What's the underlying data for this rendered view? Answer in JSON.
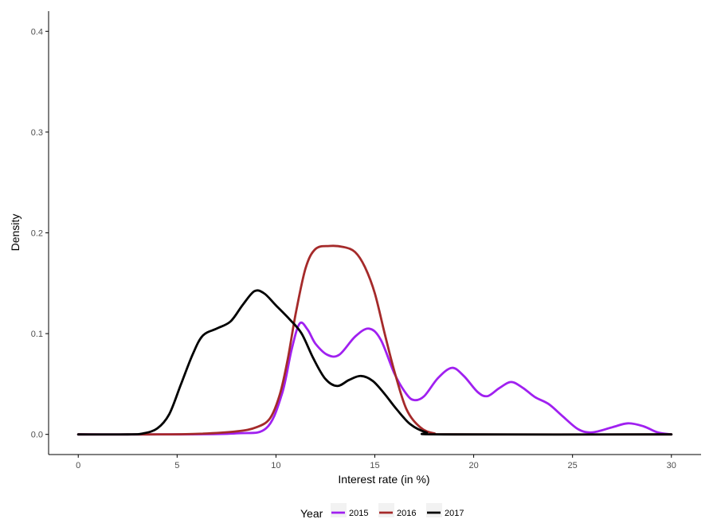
{
  "chart_data": {
    "type": "line",
    "title": "",
    "xlabel": "Interest rate (in %)",
    "ylabel": "Density",
    "xlim": [
      0,
      30
    ],
    "ylim": [
      0,
      0.4
    ],
    "x_ticks": [
      "0",
      "5",
      "10",
      "15",
      "20",
      "25",
      "30"
    ],
    "y_ticks": [
      "0.0",
      "0.1",
      "0.2",
      "0.3",
      "0.4"
    ],
    "grid": false,
    "legend": {
      "title": "Year",
      "position": "bottom"
    },
    "series": [
      {
        "name": "2015",
        "color": "#A020F0",
        "points": [
          [
            0,
            0
          ],
          [
            5,
            0
          ],
          [
            8,
            0.001
          ],
          [
            9.5,
            0.006
          ],
          [
            10.3,
            0.04
          ],
          [
            10.8,
            0.085
          ],
          [
            11.2,
            0.11
          ],
          [
            11.6,
            0.104
          ],
          [
            12,
            0.09
          ],
          [
            12.6,
            0.079
          ],
          [
            13.2,
            0.079
          ],
          [
            14,
            0.097
          ],
          [
            14.7,
            0.105
          ],
          [
            15.3,
            0.094
          ],
          [
            16,
            0.06
          ],
          [
            16.6,
            0.04
          ],
          [
            17,
            0.034
          ],
          [
            17.5,
            0.038
          ],
          [
            18.2,
            0.056
          ],
          [
            18.9,
            0.066
          ],
          [
            19.5,
            0.058
          ],
          [
            20.2,
            0.042
          ],
          [
            20.7,
            0.038
          ],
          [
            21.3,
            0.046
          ],
          [
            21.9,
            0.052
          ],
          [
            22.5,
            0.046
          ],
          [
            23.1,
            0.037
          ],
          [
            23.8,
            0.03
          ],
          [
            24.5,
            0.018
          ],
          [
            25.3,
            0.005
          ],
          [
            26,
            0.002
          ],
          [
            27,
            0.007
          ],
          [
            27.8,
            0.011
          ],
          [
            28.6,
            0.008
          ],
          [
            29.3,
            0.002
          ],
          [
            30,
            0
          ]
        ]
      },
      {
        "name": "2016",
        "color": "#A52A2A",
        "points": [
          [
            0,
            0
          ],
          [
            3.5,
            0
          ],
          [
            6,
            0.0005
          ],
          [
            8,
            0.003
          ],
          [
            9,
            0.007
          ],
          [
            9.7,
            0.016
          ],
          [
            10.2,
            0.04
          ],
          [
            10.6,
            0.075
          ],
          [
            11,
            0.12
          ],
          [
            11.5,
            0.165
          ],
          [
            12,
            0.184
          ],
          [
            12.7,
            0.187
          ],
          [
            13.4,
            0.186
          ],
          [
            14,
            0.181
          ],
          [
            14.5,
            0.166
          ],
          [
            15,
            0.14
          ],
          [
            15.5,
            0.1
          ],
          [
            16,
            0.062
          ],
          [
            16.6,
            0.025
          ],
          [
            17.3,
            0.007
          ],
          [
            18,
            0.001
          ],
          [
            19,
            0
          ],
          [
            30,
            0
          ]
        ]
      },
      {
        "name": "2017",
        "color": "#000000",
        "points": [
          [
            0,
            0
          ],
          [
            2.5,
            0
          ],
          [
            3.3,
            0.001
          ],
          [
            4,
            0.006
          ],
          [
            4.6,
            0.02
          ],
          [
            5.2,
            0.05
          ],
          [
            5.8,
            0.08
          ],
          [
            6.3,
            0.098
          ],
          [
            7,
            0.105
          ],
          [
            7.7,
            0.112
          ],
          [
            8.3,
            0.128
          ],
          [
            8.9,
            0.142
          ],
          [
            9.4,
            0.14
          ],
          [
            10,
            0.128
          ],
          [
            10.7,
            0.114
          ],
          [
            11.3,
            0.1
          ],
          [
            11.9,
            0.075
          ],
          [
            12.5,
            0.055
          ],
          [
            13.1,
            0.048
          ],
          [
            13.7,
            0.054
          ],
          [
            14.3,
            0.058
          ],
          [
            14.9,
            0.053
          ],
          [
            15.5,
            0.04
          ],
          [
            16.1,
            0.025
          ],
          [
            16.8,
            0.01
          ],
          [
            17.6,
            0.002
          ],
          [
            18.5,
            0
          ],
          [
            30,
            0
          ]
        ]
      }
    ]
  }
}
